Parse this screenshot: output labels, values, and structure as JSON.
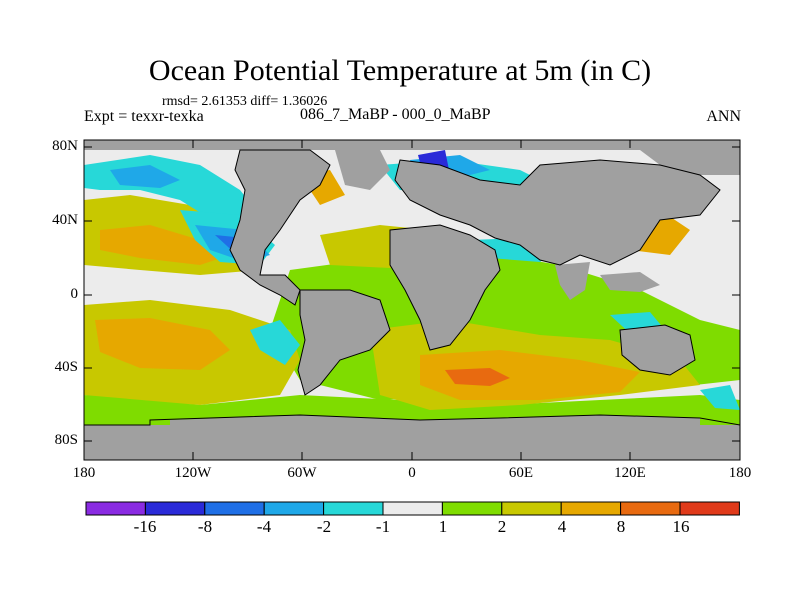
{
  "title": "Ocean Potential Temperature at 5m (in C)",
  "stats": "rmsd= 2.61353 diff= 1.36026",
  "experiment": "Expt = texxr-texka",
  "experiment_names": "086_7_MaBP - 000_0_MaBP",
  "season": "ANN",
  "y_axis_labels": [
    "80N",
    "40N",
    "0",
    "40S",
    "80S"
  ],
  "x_axis_labels": [
    "180",
    "120W",
    "60W",
    "0",
    "60E",
    "120E",
    "180"
  ],
  "colorbar": {
    "colors": [
      "#8a2be2",
      "#2a2ad8",
      "#1f6fe6",
      "#1fa8e8",
      "#27d8d8",
      "#ececec",
      "#7fdc00",
      "#c8c800",
      "#e6a800",
      "#e86a10",
      "#e03a1a"
    ],
    "labels": [
      "-16",
      "-8",
      "-4",
      "-2",
      "-1",
      "1",
      "2",
      "4",
      "8",
      "16"
    ]
  },
  "colors": {
    "land": "#a0a0a0",
    "coast": "#000000"
  }
}
